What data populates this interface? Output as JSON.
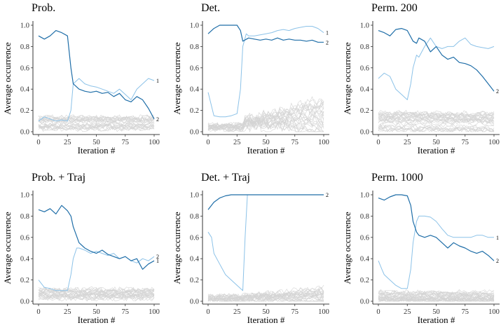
{
  "colors": {
    "dark": "#1f6ea8",
    "light": "#8cc2e8",
    "grey": "#d4d4d4"
  },
  "chart_data": [
    {
      "type": "line",
      "title": "Prob.",
      "xlabel": "Iteration #",
      "ylabel": "Average occurrence",
      "xlim": [
        0,
        100
      ],
      "ylim": [
        0,
        1
      ],
      "xticks": [
        0,
        25,
        50,
        75,
        100
      ],
      "yticks": [
        0.0,
        0.2,
        0.4,
        0.6,
        0.8,
        1.0
      ],
      "grey_band": {
        "count": 24,
        "lo": 0.02,
        "hi": 0.14,
        "spread_lo": 0.0,
        "spread_hi": 0.0
      },
      "series": [
        {
          "color": "dark",
          "end_label": "2",
          "x": [
            0,
            5,
            10,
            15,
            20,
            25,
            28,
            30,
            35,
            40,
            45,
            50,
            55,
            60,
            65,
            70,
            75,
            80,
            85,
            90,
            95,
            100
          ],
          "y": [
            0.9,
            0.87,
            0.9,
            0.95,
            0.93,
            0.9,
            0.6,
            0.45,
            0.4,
            0.38,
            0.37,
            0.38,
            0.36,
            0.37,
            0.33,
            0.36,
            0.3,
            0.28,
            0.33,
            0.3,
            0.22,
            0.12
          ]
        },
        {
          "color": "light",
          "end_label": "1",
          "x": [
            0,
            5,
            10,
            15,
            20,
            25,
            28,
            30,
            35,
            40,
            45,
            50,
            55,
            60,
            65,
            70,
            75,
            80,
            85,
            90,
            95,
            100
          ],
          "y": [
            0.1,
            0.14,
            0.12,
            0.1,
            0.11,
            0.1,
            0.2,
            0.45,
            0.5,
            0.45,
            0.43,
            0.42,
            0.4,
            0.38,
            0.36,
            0.4,
            0.35,
            0.3,
            0.4,
            0.45,
            0.5,
            0.48
          ]
        }
      ]
    },
    {
      "type": "line",
      "title": "Det.",
      "xlabel": "Iteration #",
      "ylabel": "Average occurrence",
      "xlim": [
        0,
        100
      ],
      "ylim": [
        0,
        1
      ],
      "xticks": [
        0,
        25,
        50,
        75,
        100
      ],
      "yticks": [
        0.0,
        0.2,
        0.4,
        0.6,
        0.8,
        1.0
      ],
      "grey_band": {
        "count": 24,
        "lo": 0.01,
        "hi": 0.08,
        "spread_lo": 0.08,
        "spread_hi": 0.35
      },
      "series": [
        {
          "color": "dark",
          "end_label": "2",
          "x": [
            0,
            5,
            10,
            15,
            20,
            25,
            28,
            30,
            35,
            40,
            45,
            50,
            55,
            60,
            65,
            70,
            75,
            80,
            85,
            90,
            95,
            100
          ],
          "y": [
            0.92,
            0.97,
            1.0,
            1.0,
            1.0,
            1.0,
            0.95,
            0.85,
            0.88,
            0.87,
            0.86,
            0.87,
            0.86,
            0.88,
            0.86,
            0.87,
            0.86,
            0.86,
            0.85,
            0.86,
            0.84,
            0.84
          ]
        },
        {
          "color": "light",
          "end_label": "1",
          "x": [
            0,
            5,
            10,
            15,
            20,
            25,
            28,
            30,
            33,
            35,
            40,
            45,
            50,
            55,
            60,
            65,
            70,
            75,
            80,
            85,
            90,
            95,
            100
          ],
          "y": [
            0.37,
            0.15,
            0.14,
            0.14,
            0.15,
            0.17,
            0.4,
            0.8,
            0.92,
            0.9,
            0.9,
            0.91,
            0.92,
            0.93,
            0.95,
            0.96,
            0.95,
            0.97,
            0.98,
            0.99,
            0.99,
            0.97,
            0.93
          ]
        }
      ]
    },
    {
      "type": "line",
      "title": "Perm. 200",
      "xlabel": "Iteration #",
      "ylabel": "Average occurrence",
      "xlim": [
        0,
        100
      ],
      "ylim": [
        0,
        1
      ],
      "xticks": [
        0,
        25,
        50,
        75,
        100
      ],
      "yticks": [
        0.0,
        0.2,
        0.4,
        0.6,
        0.8,
        1.0
      ],
      "grey_band": {
        "count": 28,
        "lo": 0.01,
        "hi": 0.18,
        "spread_lo": 0.0,
        "spread_hi": -0.05
      },
      "series": [
        {
          "color": "dark",
          "end_label": "2",
          "x": [
            0,
            5,
            10,
            15,
            20,
            25,
            30,
            33,
            35,
            40,
            45,
            50,
            55,
            60,
            65,
            70,
            75,
            80,
            85,
            90,
            95,
            100
          ],
          "y": [
            0.95,
            0.93,
            0.9,
            0.96,
            0.97,
            0.95,
            0.85,
            0.83,
            0.88,
            0.85,
            0.75,
            0.8,
            0.72,
            0.68,
            0.7,
            0.65,
            0.64,
            0.62,
            0.58,
            0.52,
            0.45,
            0.38
          ]
        },
        {
          "color": "light",
          "end_label": "",
          "x": [
            0,
            5,
            10,
            15,
            20,
            25,
            28,
            30,
            33,
            35,
            40,
            45,
            50,
            55,
            60,
            65,
            70,
            75,
            80,
            85,
            90,
            95,
            100
          ],
          "y": [
            0.5,
            0.55,
            0.52,
            0.4,
            0.35,
            0.3,
            0.45,
            0.6,
            0.72,
            0.7,
            0.8,
            0.88,
            0.8,
            0.78,
            0.8,
            0.8,
            0.85,
            0.88,
            0.82,
            0.8,
            0.79,
            0.78,
            0.8
          ]
        }
      ]
    },
    {
      "type": "line",
      "title": "Prob. + Traj",
      "xlabel": "Iteration #",
      "ylabel": "Average occurrence",
      "xlim": [
        0,
        100
      ],
      "ylim": [
        0,
        1
      ],
      "xticks": [
        0,
        25,
        50,
        75,
        100
      ],
      "yticks": [
        0.0,
        0.2,
        0.4,
        0.6,
        0.8,
        1.0
      ],
      "grey_band": {
        "count": 24,
        "lo": 0.02,
        "hi": 0.12,
        "spread_lo": 0.0,
        "spread_hi": 0.0
      },
      "series": [
        {
          "color": "dark",
          "end_label": "1",
          "x": [
            0,
            5,
            10,
            15,
            20,
            25,
            28,
            30,
            35,
            40,
            45,
            50,
            55,
            60,
            65,
            70,
            75,
            80,
            85,
            90,
            95,
            100
          ],
          "y": [
            0.86,
            0.84,
            0.87,
            0.82,
            0.9,
            0.85,
            0.8,
            0.7,
            0.55,
            0.5,
            0.47,
            0.45,
            0.48,
            0.44,
            0.42,
            0.4,
            0.42,
            0.38,
            0.4,
            0.3,
            0.35,
            0.38
          ]
        },
        {
          "color": "light",
          "end_label": "2",
          "x": [
            0,
            5,
            10,
            15,
            20,
            25,
            28,
            30,
            33,
            35,
            40,
            45,
            50,
            55,
            60,
            65,
            70,
            75,
            80,
            85,
            90,
            95,
            100
          ],
          "y": [
            0.2,
            0.13,
            0.12,
            0.1,
            0.1,
            0.1,
            0.25,
            0.4,
            0.5,
            0.5,
            0.48,
            0.45,
            0.47,
            0.45,
            0.43,
            0.45,
            0.4,
            0.42,
            0.38,
            0.36,
            0.4,
            0.38,
            0.42
          ]
        }
      ]
    },
    {
      "type": "line",
      "title": "Det. + Traj",
      "xlabel": "Iteration #",
      "ylabel": "Average occurrence",
      "xlim": [
        0,
        100
      ],
      "ylim": [
        0,
        1
      ],
      "xticks": [
        0,
        25,
        50,
        75,
        100
      ],
      "yticks": [
        0.0,
        0.2,
        0.4,
        0.6,
        0.8,
        1.0
      ],
      "grey_band": {
        "count": 24,
        "lo": 0.0,
        "hi": 0.06,
        "spread_lo": 0.02,
        "spread_hi": 0.1
      },
      "series": [
        {
          "color": "dark",
          "end_label": "2",
          "x": [
            0,
            5,
            10,
            15,
            20,
            25,
            30,
            35,
            40,
            50,
            60,
            70,
            80,
            90,
            100
          ],
          "y": [
            0.86,
            0.93,
            0.97,
            0.99,
            1.0,
            1.0,
            1.0,
            1.0,
            1.0,
            1.0,
            1.0,
            1.0,
            1.0,
            1.0,
            1.0
          ]
        },
        {
          "color": "light",
          "end_label": "",
          "x": [
            0,
            3,
            5,
            10,
            15,
            20,
            25,
            30,
            32,
            34,
            40,
            50,
            60,
            70,
            80,
            90,
            100
          ],
          "y": [
            0.65,
            0.6,
            0.45,
            0.35,
            0.25,
            0.2,
            0.15,
            0.1,
            0.6,
            1.0,
            1.0,
            1.0,
            1.0,
            1.0,
            1.0,
            1.0,
            1.0
          ]
        }
      ]
    },
    {
      "type": "line",
      "title": "Perm. 1000",
      "xlabel": "Iteration #",
      "ylabel": "Average occurrence",
      "xlim": [
        0,
        100
      ],
      "ylim": [
        0,
        1
      ],
      "xticks": [
        0,
        25,
        50,
        75,
        100
      ],
      "yticks": [
        0.0,
        0.2,
        0.4,
        0.6,
        0.8,
        1.0
      ],
      "grey_band": {
        "count": 28,
        "lo": 0.0,
        "hi": 0.09,
        "spread_lo": 0.0,
        "spread_hi": -0.02
      },
      "series": [
        {
          "color": "dark",
          "end_label": "2",
          "x": [
            0,
            5,
            10,
            15,
            20,
            25,
            28,
            30,
            33,
            35,
            40,
            45,
            50,
            55,
            60,
            65,
            70,
            75,
            80,
            85,
            90,
            95,
            100
          ],
          "y": [
            0.97,
            0.95,
            0.98,
            1.0,
            1.0,
            0.99,
            0.9,
            0.75,
            0.65,
            0.62,
            0.6,
            0.62,
            0.6,
            0.55,
            0.5,
            0.55,
            0.52,
            0.5,
            0.47,
            0.45,
            0.47,
            0.43,
            0.38
          ]
        },
        {
          "color": "light",
          "end_label": "1",
          "x": [
            0,
            3,
            5,
            10,
            15,
            20,
            25,
            28,
            30,
            33,
            35,
            40,
            45,
            50,
            55,
            60,
            65,
            70,
            75,
            80,
            85,
            90,
            95,
            100
          ],
          "y": [
            0.38,
            0.3,
            0.25,
            0.2,
            0.15,
            0.12,
            0.12,
            0.3,
            0.55,
            0.75,
            0.8,
            0.8,
            0.79,
            0.75,
            0.68,
            0.62,
            0.6,
            0.6,
            0.6,
            0.6,
            0.62,
            0.62,
            0.6,
            0.6
          ]
        }
      ]
    }
  ]
}
